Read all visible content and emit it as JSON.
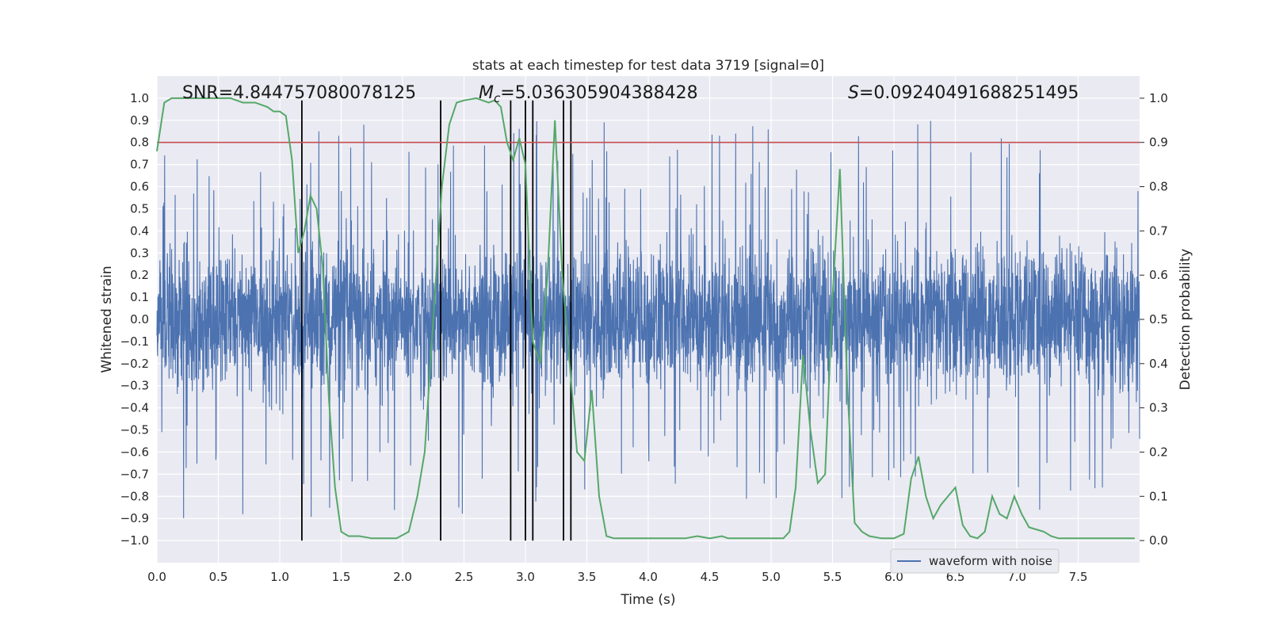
{
  "chart_data": {
    "type": "line",
    "title": "stats at each timestep for test data 3719 [signal=0]",
    "xlabel": "Time (s)",
    "ylabel_left": "Whitened strain",
    "ylabel_right": "Detection probability",
    "xlim": [
      0,
      8
    ],
    "ylim_left": [
      -1.1,
      1.1
    ],
    "ylim_right": [
      -0.05,
      1.05
    ],
    "x_ticks": [
      "0.0",
      "0.5",
      "1.0",
      "1.5",
      "2.0",
      "2.5",
      "3.0",
      "3.5",
      "4.0",
      "4.5",
      "5.0",
      "5.5",
      "6.0",
      "6.5",
      "7.0",
      "7.5"
    ],
    "y_left_ticks": [
      "1.0",
      "0.9",
      "0.8",
      "0.7",
      "0.6",
      "0.5",
      "0.4",
      "0.3",
      "0.2",
      "0.1",
      "0.0",
      "-0.1",
      "-0.2",
      "-0.3",
      "-0.4",
      "-0.5",
      "-0.6",
      "-0.7",
      "-0.8",
      "-0.9",
      "-1.0"
    ],
    "y_right_ticks": [
      "1.0",
      "0.9",
      "0.8",
      "0.7",
      "0.6",
      "0.5",
      "0.4",
      "0.3",
      "0.2",
      "0.1",
      "0.0"
    ],
    "annotations": {
      "snr": "SNR=4.844757080078125",
      "mc_symbol": "M",
      "mc_sub": "c",
      "mc_value": "=5.036305904388428",
      "s_symbol": "S",
      "s_value": "=0.09240491688251495"
    },
    "legend": [
      "waveform with noise"
    ],
    "series": [
      {
        "name": "waveform with noise",
        "color": "#4c72b0",
        "note": "dense whitened strain noise, bulk within about ±0.35",
        "seed": 3719
      },
      {
        "name": "detection probability",
        "color": "#55a868",
        "x": [
          0.0,
          0.06,
          0.12,
          0.2,
          0.3,
          0.4,
          0.5,
          0.6,
          0.7,
          0.8,
          0.9,
          0.95,
          1.0,
          1.05,
          1.1,
          1.15,
          1.2,
          1.25,
          1.3,
          1.35,
          1.4,
          1.45,
          1.5,
          1.56,
          1.65,
          1.75,
          1.85,
          1.95,
          2.05,
          2.12,
          2.18,
          2.25,
          2.32,
          2.38,
          2.44,
          2.5,
          2.6,
          2.7,
          2.75,
          2.8,
          2.85,
          2.9,
          2.95,
          3.0,
          3.06,
          3.12,
          3.18,
          3.24,
          3.3,
          3.36,
          3.42,
          3.48,
          3.54,
          3.6,
          3.66,
          3.72,
          3.8,
          3.9,
          4.0,
          4.1,
          4.2,
          4.3,
          4.4,
          4.5,
          4.6,
          4.65,
          4.7,
          4.8,
          4.9,
          5.0,
          5.1,
          5.15,
          5.2,
          5.26,
          5.32,
          5.38,
          5.44,
          5.5,
          5.56,
          5.62,
          5.68,
          5.74,
          5.8,
          5.9,
          6.0,
          6.08,
          6.14,
          6.2,
          6.26,
          6.32,
          6.38,
          6.44,
          6.5,
          6.56,
          6.62,
          6.68,
          6.74,
          6.8,
          6.86,
          6.92,
          6.98,
          7.04,
          7.1,
          7.16,
          7.22,
          7.28,
          7.34,
          7.4,
          7.5,
          7.6,
          7.7,
          7.8,
          7.96
        ],
        "values": [
          0.88,
          0.99,
          1.0,
          1.0,
          1.0,
          1.0,
          1.0,
          1.0,
          0.99,
          0.99,
          0.98,
          0.97,
          0.97,
          0.96,
          0.86,
          0.65,
          0.7,
          0.78,
          0.75,
          0.62,
          0.32,
          0.12,
          0.02,
          0.01,
          0.01,
          0.005,
          0.005,
          0.005,
          0.02,
          0.1,
          0.2,
          0.5,
          0.8,
          0.94,
          0.99,
          0.995,
          1.0,
          0.99,
          0.995,
          0.98,
          0.9,
          0.86,
          0.91,
          0.85,
          0.45,
          0.4,
          0.6,
          0.95,
          0.6,
          0.4,
          0.2,
          0.18,
          0.34,
          0.1,
          0.01,
          0.005,
          0.005,
          0.005,
          0.005,
          0.005,
          0.005,
          0.005,
          0.01,
          0.005,
          0.01,
          0.005,
          0.005,
          0.005,
          0.005,
          0.005,
          0.005,
          0.02,
          0.12,
          0.42,
          0.25,
          0.13,
          0.15,
          0.55,
          0.84,
          0.35,
          0.04,
          0.02,
          0.01,
          0.005,
          0.005,
          0.015,
          0.14,
          0.19,
          0.1,
          0.05,
          0.08,
          0.1,
          0.12,
          0.035,
          0.01,
          0.005,
          0.02,
          0.1,
          0.06,
          0.05,
          0.1,
          0.06,
          0.03,
          0.025,
          0.02,
          0.01,
          0.005,
          0.005,
          0.005,
          0.005,
          0.005,
          0.005,
          0.005
        ]
      }
    ],
    "threshold_line": {
      "value": 0.9,
      "axis": "right",
      "color": "#c44e52"
    },
    "event_markers_x": [
      1.18,
      2.31,
      2.88,
      3.0,
      3.06,
      3.31,
      3.37
    ]
  }
}
